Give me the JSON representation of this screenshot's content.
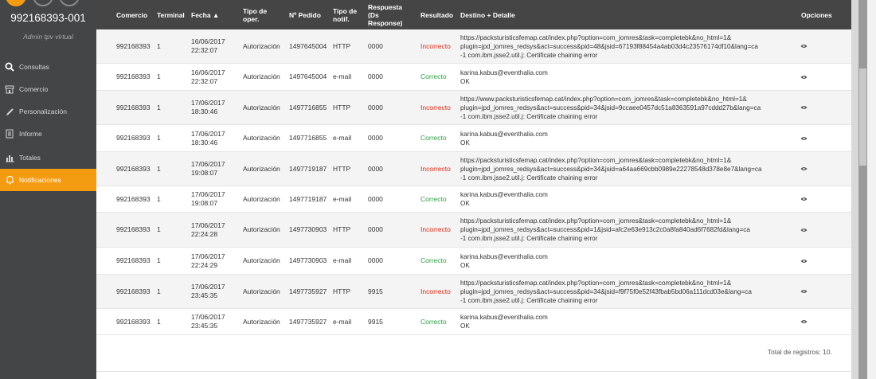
{
  "sidebar": {
    "merchant_id": "992168393-001",
    "subtitle": "Admin tpv virtual",
    "items": [
      {
        "label": "Consultas",
        "icon": "search-icon"
      },
      {
        "label": "Comercio",
        "icon": "store-icon"
      },
      {
        "label": "Personalización",
        "icon": "pencil-icon"
      },
      {
        "label": "Informe",
        "icon": "document-icon"
      },
      {
        "label": "Totales",
        "icon": "bar-chart-icon"
      },
      {
        "label": "Notificaciones",
        "icon": "bell-icon",
        "active": true
      }
    ]
  },
  "table": {
    "headers": {
      "comercio": "Comercio",
      "terminal": "Terminal",
      "fecha": "Fecha ▲",
      "tipo_oper": "Tipo de oper.",
      "pedido": "Nº Pedido",
      "tipo_notif": "Tipo de notif.",
      "respuesta": "Respuesta (Ds Response)",
      "resultado": "Resultado",
      "destino": "Destino + Detalle",
      "opciones": "Opciones"
    },
    "rows": [
      {
        "comercio": "992168393",
        "terminal": "1",
        "fecha": "16/06/2017 22:32:07",
        "tipo": "Autorización",
        "pedido": "1497645004",
        "notif": "HTTP",
        "respuesta": "0000",
        "resultado": "Incorrecto",
        "status": "bad",
        "detalle": [
          "https://packsturisticsfemap.cat/index.php?option=com_jomres&task=completebk&no_html=1&",
          "plugin=jpd_jomres_redsys&act=success&pid=48&jsid=67193f88454a4ab03d4c23576174df10&lang=ca",
          "-1 com.ibm.jsse2.util.j: Certificate chaining error"
        ]
      },
      {
        "comercio": "992168393",
        "terminal": "1",
        "fecha": "16/06/2017 22:32:07",
        "tipo": "Autorización",
        "pedido": "1497645004",
        "notif": "e-mail",
        "respuesta": "0000",
        "resultado": "Correcto",
        "status": "ok",
        "detalle": [
          "karina.kabus@eventhalia.com",
          "OK"
        ]
      },
      {
        "comercio": "992168393",
        "terminal": "1",
        "fecha": "17/06/2017 18:30:46",
        "tipo": "Autorización",
        "pedido": "1497716855",
        "notif": "HTTP",
        "respuesta": "0000",
        "resultado": "Incorrecto",
        "status": "bad",
        "detalle": [
          "https://www.packsturisticsfemap.cat/index.php?option=com_jomres&task=completebk&no_html=1&",
          "plugin=jpd_jomres_redsys&act=success&pid=34&jsid=9ccaee0457dc51a8363591a97cddd27b&lang=ca",
          "-1 com.ibm.jsse2.util.j: Certificate chaining error"
        ]
      },
      {
        "comercio": "992168393",
        "terminal": "1",
        "fecha": "17/06/2017 18:30:46",
        "tipo": "Autorización",
        "pedido": "1497716855",
        "notif": "e-mail",
        "respuesta": "0000",
        "resultado": "Correcto",
        "status": "ok",
        "detalle": [
          "karina.kabus@eventhalia.com",
          "OK"
        ]
      },
      {
        "comercio": "992168393",
        "terminal": "1",
        "fecha": "17/06/2017 19:08:07",
        "tipo": "Autorización",
        "pedido": "1497719187",
        "notif": "HTTP",
        "respuesta": "0000",
        "resultado": "Incorrecto",
        "status": "bad",
        "detalle": [
          "https://packsturisticsfemap.cat/index.php?option=com_jomres&task=completebk&no_html=1&",
          "plugin=jpd_jomres_redsys&act=success&pid=34&jsid=a64aa669cbb0989e22278548d378e8e7&lang=ca",
          "-1 com.ibm.jsse2.util.j: Certificate chaining error"
        ]
      },
      {
        "comercio": "992168393",
        "terminal": "1",
        "fecha": "17/06/2017 19:08:07",
        "tipo": "Autorización",
        "pedido": "1497719187",
        "notif": "e-mail",
        "respuesta": "0000",
        "resultado": "Correcto",
        "status": "ok",
        "detalle": [
          "karina.kabus@eventhalia.com",
          "OK"
        ]
      },
      {
        "comercio": "992168393",
        "terminal": "1",
        "fecha": "17/06/2017 22:24:28",
        "tipo": "Autorización",
        "pedido": "1497730903",
        "notif": "HTTP",
        "respuesta": "0000",
        "resultado": "Incorrecto",
        "status": "bad",
        "detalle": [
          "https://packsturisticsfemap.cat/index.php?option=com_jomres&task=completebk&no_html=1&",
          "plugin=jpd_jomres_redsys&act=success&pid=1&jsid=afc2e63e913c2c0a8fa840ad6f7682fd&lang=ca",
          "-1 com.ibm.jsse2.util.j: Certificate chaining error"
        ]
      },
      {
        "comercio": "992168393",
        "terminal": "1",
        "fecha": "17/06/2017 22:24:29",
        "tipo": "Autorización",
        "pedido": "1497730903",
        "notif": "e-mail",
        "respuesta": "0000",
        "resultado": "Correcto",
        "status": "ok",
        "detalle": [
          "karina.kabus@eventhalia.com",
          "OK"
        ]
      },
      {
        "comercio": "992168393",
        "terminal": "1",
        "fecha": "17/06/2017 23:45:35",
        "tipo": "Autorización",
        "pedido": "1497735927",
        "notif": "HTTP",
        "respuesta": "9915",
        "resultado": "Incorrecto",
        "status": "bad",
        "detalle": [
          "https://packsturisticsfemap.cat/index.php?option=com_jomres&task=completebk&no_html=1&",
          "plugin=jpd_jomres_redsys&act=success&pid=34&jsid=f9f75f0e52f43fbab5bd06a111dcd03e&lang=ca",
          "-1 com.ibm.jsse2.util.j: Certificate chaining error"
        ]
      },
      {
        "comercio": "992168393",
        "terminal": "1",
        "fecha": "17/06/2017 23:45:35",
        "tipo": "Autorización",
        "pedido": "1497735927",
        "notif": "e-mail",
        "respuesta": "9915",
        "resultado": "Correcto",
        "status": "ok",
        "detalle": [
          "karina.kabus@eventhalia.com",
          "OK"
        ]
      }
    ],
    "total_label": "Total de registros: 10."
  },
  "colors": {
    "sidebar_bg": "#444546",
    "accent": "#f39c12",
    "header_bg": "#454545",
    "correct": "#2f9e44",
    "incorrect": "#d62c1a"
  }
}
